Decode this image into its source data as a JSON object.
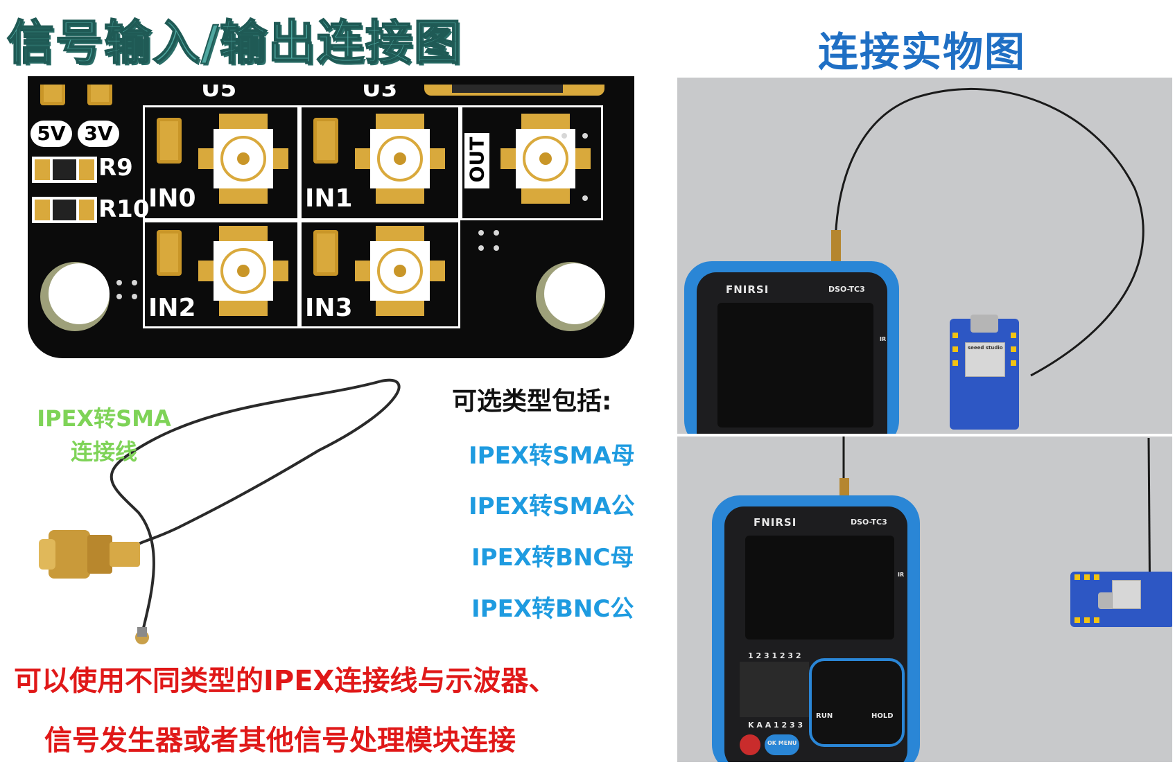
{
  "titles": {
    "left": "信号输入/输出连接图",
    "right": "连接实物图"
  },
  "pcb": {
    "top_labels": [
      "U5",
      "U3"
    ],
    "voltage": [
      "5V",
      "3V"
    ],
    "resistors": [
      "R9",
      "R10"
    ],
    "ports": [
      "IN0",
      "IN1",
      "OUT",
      "IN2",
      "IN3"
    ]
  },
  "cable": {
    "label_line1": "IPEX转SMA",
    "label_line2": "连接线"
  },
  "options": {
    "heading": "可选类型包括:",
    "items": [
      "IPEX转SMA母",
      "IPEX转SMA公",
      "IPEX转BNC母",
      "IPEX转BNC公"
    ]
  },
  "note": {
    "line1": "可以使用不同类型的IPEX连接线与示波器、",
    "line2": "信号发生器或者其他信号处理模块连接"
  },
  "photos": {
    "brand": "FNIRSI",
    "model": "DSO-TC3",
    "ir": "IR",
    "keys": [
      "RUN",
      "HOLD",
      "OK MENU"
    ],
    "pin_row": "1 2 3 1 2 3 2",
    "pin_row2": "K A A 1 2 3 3",
    "board_text": "seeed studio"
  },
  "colors": {
    "title_left": "#4fa7a0",
    "title_right": "#1f6fc4",
    "option_blue": "#1e9be0",
    "note_red": "#e01818",
    "cable_green": "#7ed357",
    "pad_gold": "#d9a93c",
    "device_blue": "#2a86d6"
  }
}
